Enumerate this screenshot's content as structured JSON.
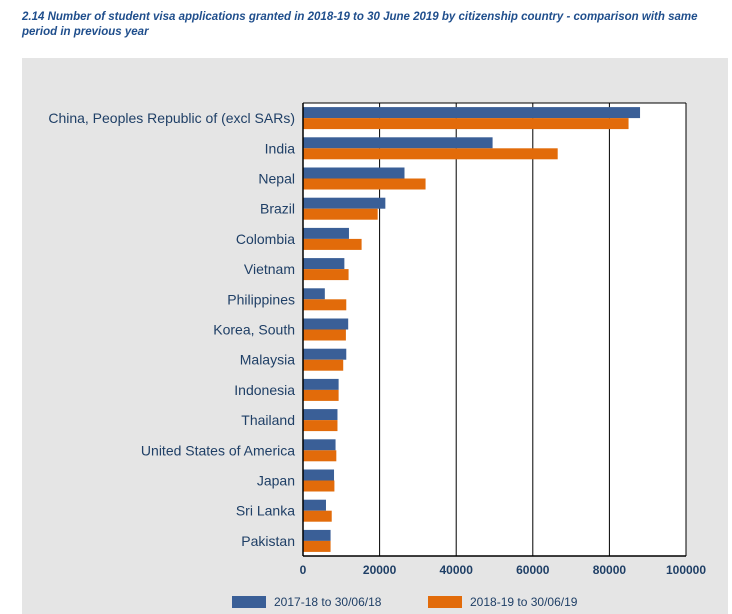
{
  "title": "2.14 Number of student visa applications granted in 2018-19 to 30 June 2019 by citizenship country - comparison with same period in previous year",
  "colors": {
    "series_2017": "#3a5f97",
    "series_2018": "#e26b0a",
    "panel_bg": "#e5e5e5",
    "plot_bg": "#ffffff",
    "label_text": "#1f3f66"
  },
  "chart_data": {
    "type": "bar",
    "orientation": "horizontal",
    "categories": [
      "China, Peoples Republic of (excl SARs)",
      "India",
      "Nepal",
      "Brazil",
      "Colombia",
      "Vietnam",
      "Philippines",
      "Korea, South",
      "Malaysia",
      "Indonesia",
      "Thailand",
      "United States of America",
      "Japan",
      "Sri Lanka",
      "Pakistan"
    ],
    "series": [
      {
        "name": "2017-18 to 30/06/18",
        "color": "#3a5f97",
        "values": [
          88000,
          49500,
          26500,
          21500,
          12000,
          10800,
          5700,
          11800,
          11300,
          9300,
          9000,
          8500,
          8100,
          6000,
          7200
        ]
      },
      {
        "name": "2018-19 to 30/06/19",
        "color": "#e26b0a",
        "values": [
          85000,
          66500,
          32000,
          19500,
          15300,
          11900,
          11300,
          11200,
          10500,
          9300,
          9000,
          8700,
          8200,
          7500,
          7200
        ]
      }
    ],
    "xlim": [
      0,
      100000
    ],
    "xticks": [
      0,
      20000,
      40000,
      60000,
      80000,
      100000
    ],
    "xtick_labels": [
      "0",
      "20000",
      "40000",
      "60000",
      "80000",
      "100000"
    ],
    "grid": "vertical",
    "legend_position": "bottom"
  }
}
